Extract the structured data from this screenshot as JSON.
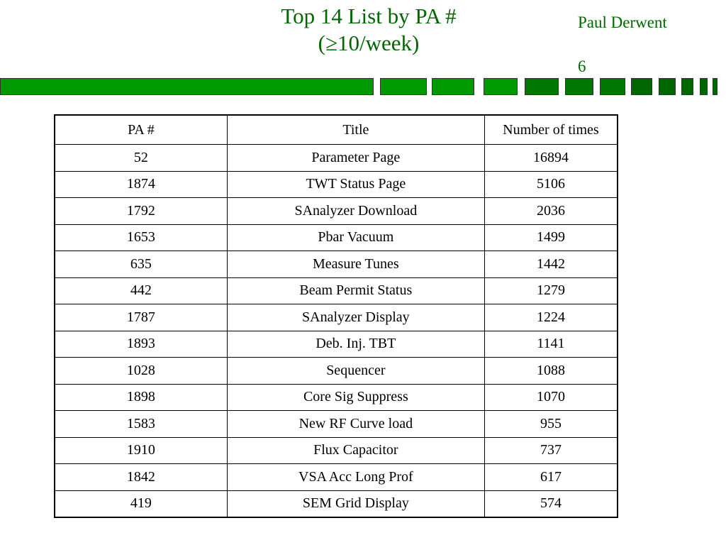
{
  "slide": {
    "title_line1": "Top 14 List by PA #",
    "title_line2": "(≥10/week)",
    "author": "Paul Derwent",
    "page_number": "6",
    "accent_color": "#009900",
    "title_color": "#006600"
  },
  "table": {
    "headers": [
      "PA #",
      "Title",
      "Number of times"
    ],
    "rows": [
      [
        "52",
        "Parameter Page",
        "16894"
      ],
      [
        "1874",
        "TWT Status Page",
        "5106"
      ],
      [
        "1792",
        "SAnalyzer Download",
        "2036"
      ],
      [
        "1653",
        "Pbar Vacuum",
        "1499"
      ],
      [
        "635",
        "Measure Tunes",
        "1442"
      ],
      [
        "442",
        "Beam Permit Status",
        "1279"
      ],
      [
        "1787",
        "SAnalyzer Display",
        "1224"
      ],
      [
        "1893",
        "Deb. Inj. TBT",
        "1141"
      ],
      [
        "1028",
        "Sequencer",
        "1088"
      ],
      [
        "1898",
        "Core Sig Suppress",
        "1070"
      ],
      [
        "1583",
        "New RF Curve load",
        "955"
      ],
      [
        "1910",
        "Flux Capacitor",
        "737"
      ],
      [
        "1842",
        "VSA Acc Long Prof",
        "617"
      ],
      [
        "419",
        "SEM Grid Display",
        "574"
      ]
    ]
  }
}
